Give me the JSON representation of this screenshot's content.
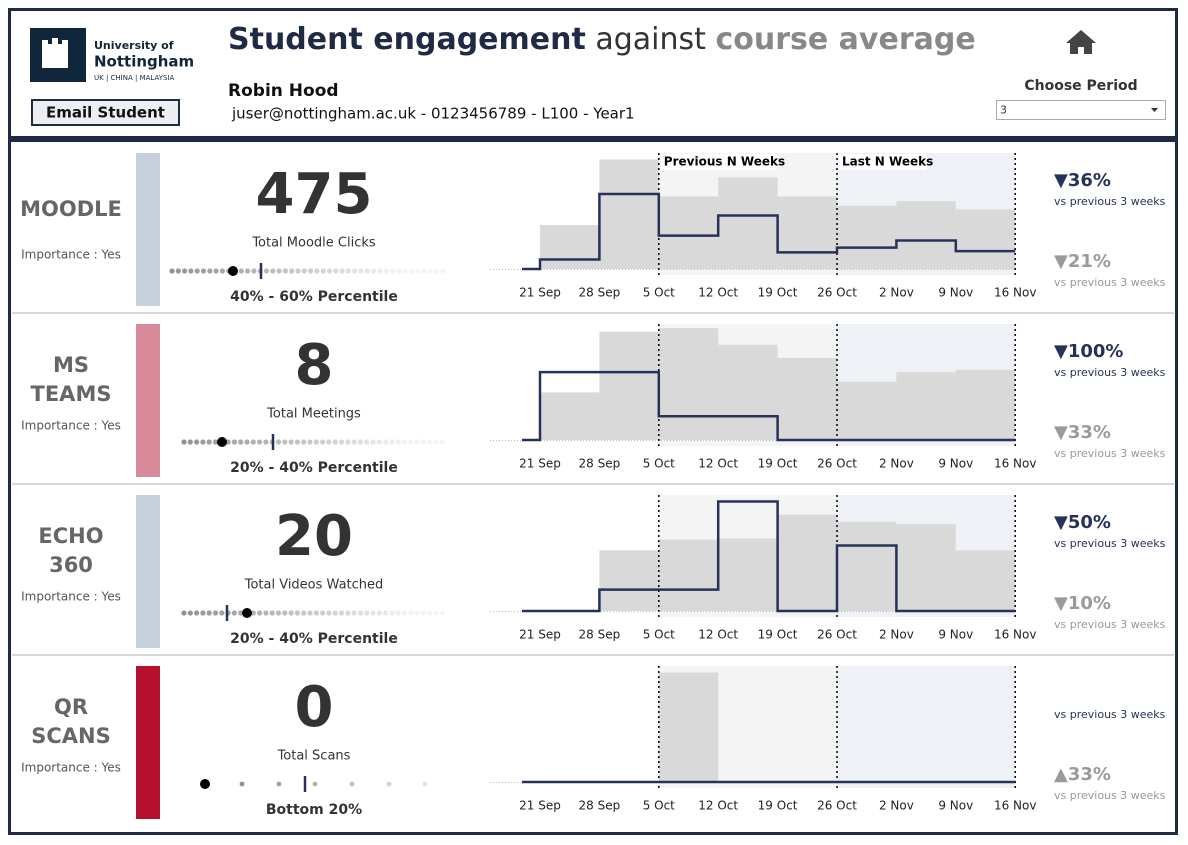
{
  "header": {
    "logo_line1": "University of",
    "logo_line2": "Nottingham",
    "logo_line3": "UK | CHINA | MALAYSIA",
    "button": "Email Student",
    "title_part1": "Student engagement",
    "title_part2": "against",
    "title_part3": "course average",
    "student_name": "Robin Hood",
    "student_info": "juser@nottingham.ac.uk - 0123456789 - L100 - Year1",
    "period_label": "Choose Period",
    "period_value": "3"
  },
  "chart_data": [
    {
      "type": "bar-step",
      "title": "MOODLE",
      "importance": "Importance : Yes",
      "side_color": "#c5d0dc",
      "total": 475,
      "total_label": "Total Moodle Clicks",
      "percentile": "40% - 60% Percentile",
      "categories": [
        "21 Sep",
        "28 Sep",
        "5 Oct",
        "12 Oct",
        "19 Oct",
        "26 Oct",
        "2 Nov",
        "9 Nov",
        "16 Nov"
      ],
      "bars": {
        "color": "#d9d9d9",
        "values": [
          37,
          92,
          61,
          77,
          61,
          53,
          57,
          50,
          null
        ]
      },
      "line": {
        "color": "#27325a",
        "values": [
          8,
          63,
          28,
          45,
          14,
          18,
          24,
          15,
          null
        ]
      },
      "ylim": [
        0,
        100
      ],
      "regions": [
        {
          "label": "Previous N Weeks",
          "from": 2,
          "to": 5,
          "color": "#f4f4f4"
        },
        {
          "label": "Last N Weeks",
          "from": 5,
          "to": 8,
          "color": "#eef1f6"
        }
      ],
      "changes": [
        {
          "label": "▼36%",
          "note": "vs previous 3 weeks",
          "color": "#27325a"
        },
        {
          "label": "▼21%",
          "note": "vs previous 3 weeks",
          "color": "#9a9a9a"
        }
      ]
    },
    {
      "type": "bar-step",
      "title": "MS TEAMS",
      "importance": "Importance : Yes",
      "side_color": "#d98a9a",
      "total": 8,
      "total_label": "Total Meetings",
      "percentile": "20% - 40% Percentile",
      "categories": [
        "21 Sep",
        "28 Sep",
        "5 Oct",
        "12 Oct",
        "19 Oct",
        "26 Oct",
        "2 Nov",
        "9 Nov",
        "16 Nov"
      ],
      "bars": {
        "color": "#d9d9d9",
        "values": [
          40,
          91,
          94,
          80,
          69,
          49,
          57,
          59,
          null
        ]
      },
      "line": {
        "color": "#27325a",
        "values": [
          57,
          57,
          20,
          20,
          0,
          0,
          0,
          0,
          null
        ]
      },
      "ylim": [
        0,
        100
      ],
      "regions": [
        {
          "from": 2,
          "to": 5,
          "color": "#f4f4f4"
        },
        {
          "from": 5,
          "to": 8,
          "color": "#eef1f6"
        }
      ],
      "changes": [
        {
          "label": "▼100%",
          "note": "vs previous 3 weeks",
          "color": "#27325a"
        },
        {
          "label": "▼33%",
          "note": "vs previous 3 weeks",
          "color": "#9a9a9a"
        }
      ]
    },
    {
      "type": "bar-step",
      "title": "ECHO 360",
      "importance": "Importance : Yes",
      "side_color": "#c5d0dc",
      "total": 20,
      "total_label": "Total Videos Watched",
      "percentile": "20% - 40% Percentile",
      "categories": [
        "21 Sep",
        "28 Sep",
        "5 Oct",
        "12 Oct",
        "19 Oct",
        "26 Oct",
        "2 Nov",
        "9 Nov",
        "16 Nov"
      ],
      "bars": {
        "color": "#d9d9d9",
        "values": [
          0,
          51,
          60,
          61,
          81,
          75,
          73,
          51,
          null
        ]
      },
      "line": {
        "color": "#27325a",
        "values": [
          0,
          18,
          18,
          92,
          0,
          55,
          0,
          0,
          null
        ]
      },
      "ylim": [
        0,
        100
      ],
      "regions": [
        {
          "from": 2,
          "to": 5,
          "color": "#f4f4f4"
        },
        {
          "from": 5,
          "to": 8,
          "color": "#eef1f6"
        }
      ],
      "changes": [
        {
          "label": "▼50%",
          "note": "vs previous 3 weeks",
          "color": "#27325a"
        },
        {
          "label": "▼10%",
          "note": "vs previous 3 weeks",
          "color": "#9a9a9a"
        }
      ]
    },
    {
      "type": "bar-step",
      "title": "QR SCANS",
      "importance": "Importance : Yes",
      "side_color": "#b5112f",
      "total": 0,
      "total_label": "Total Scans",
      "percentile": "Bottom 20%",
      "categories": [
        "21 Sep",
        "28 Sep",
        "5 Oct",
        "12 Oct",
        "19 Oct",
        "26 Oct",
        "2 Nov",
        "9 Nov",
        "16 Nov"
      ],
      "bars": {
        "color": "#d9d9d9",
        "values": [
          0,
          0,
          92,
          0,
          0,
          0,
          0,
          0,
          null
        ]
      },
      "line": {
        "color": "#27325a",
        "values": [
          0,
          0,
          0,
          0,
          0,
          0,
          0,
          0,
          null
        ]
      },
      "ylim": [
        0,
        100
      ],
      "regions": [
        {
          "from": 2,
          "to": 5,
          "color": "#f4f4f4"
        },
        {
          "from": 5,
          "to": 8,
          "color": "#eef1f6"
        }
      ],
      "changes": [
        {
          "note": "vs previous 3 weeks",
          "color": "#27325a"
        },
        {
          "label": "▲33%",
          "note": "vs previous 3 weeks",
          "color": "#9a9a9a"
        }
      ]
    }
  ]
}
